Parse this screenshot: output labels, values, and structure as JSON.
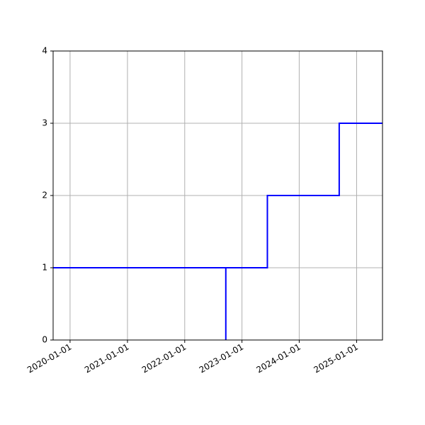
{
  "chart_data": {
    "type": "line",
    "title": "",
    "xlabel": "",
    "ylabel": "",
    "xlim": [
      "2019-09-15",
      "2025-06-15"
    ],
    "ylim": [
      0,
      4
    ],
    "grid": true,
    "legend": "none",
    "line_color": "#0000ff",
    "grid_color": "#b0b0b0",
    "x_tick_labels": [
      "2020-01-01",
      "2021-01-01",
      "2022-01-01",
      "2023-01-01",
      "2024-01-01",
      "2025-01-01"
    ],
    "y_tick_labels": [
      "0",
      "1",
      "2",
      "3",
      "4"
    ],
    "series": [
      {
        "points": [
          {
            "x": "2019-09-15",
            "y": 1
          },
          {
            "x": "2022-09-20",
            "y": 1
          },
          {
            "x": "2022-09-20",
            "y": 0
          },
          {
            "x": "2022-09-20",
            "y": 1
          },
          {
            "x": "2023-06-12",
            "y": 1
          },
          {
            "x": "2023-06-12",
            "y": 2
          },
          {
            "x": "2024-09-12",
            "y": 2
          },
          {
            "x": "2024-09-12",
            "y": 3
          },
          {
            "x": "2025-06-15",
            "y": 3
          }
        ]
      }
    ]
  }
}
